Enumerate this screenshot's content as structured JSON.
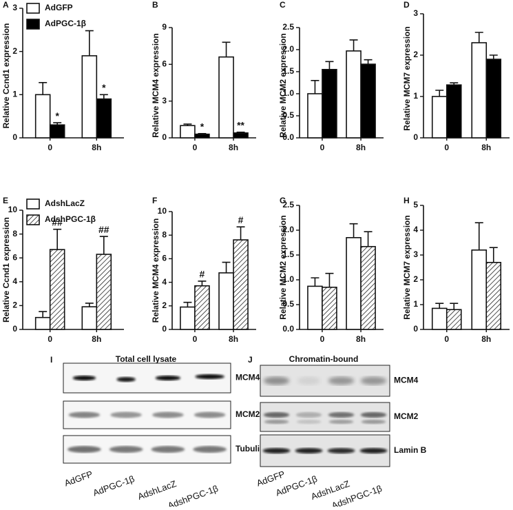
{
  "chart_data": [
    {
      "type": "bar",
      "panel_label": "A",
      "y_label": "Relative Ccnd1 expression",
      "categories": [
        "0",
        "8h"
      ],
      "ylim": [
        0,
        3
      ],
      "yticks": [
        0,
        1,
        2,
        3
      ],
      "series": [
        {
          "name": "AdGFP",
          "color": "#ffffff",
          "values": [
            1.0,
            1.9
          ],
          "errors": [
            0.28,
            0.58
          ]
        },
        {
          "name": "AdPGC-1β",
          "color": "#000000",
          "values": [
            0.3,
            0.9
          ],
          "errors": [
            0.05,
            0.1
          ],
          "annotations": [
            "*",
            "*"
          ]
        }
      ]
    },
    {
      "type": "bar",
      "panel_label": "B",
      "y_label": "Relative MCM4 expression",
      "categories": [
        "0",
        "8h"
      ],
      "ylim": [
        0,
        9
      ],
      "yticks": [
        0,
        3,
        6,
        9
      ],
      "series": [
        {
          "color": "#ffffff",
          "values": [
            1.0,
            6.6
          ],
          "errors": [
            0.12,
            1.2
          ]
        },
        {
          "color": "#000000",
          "values": [
            0.3,
            0.4
          ],
          "errors": [
            0.05,
            0.06
          ],
          "annotations": [
            "*",
            "**"
          ]
        }
      ]
    },
    {
      "type": "bar",
      "panel_label": "C",
      "y_label": "Relative MCM2 expression",
      "categories": [
        "0",
        "8h"
      ],
      "ylim": [
        0,
        2.5
      ],
      "yticks": [
        {
          "value": 0,
          "label": "0.0"
        },
        0.5,
        {
          "value": 1,
          "label": "1.0"
        },
        1.5,
        {
          "value": 2,
          "label": "2.0"
        },
        2.5
      ],
      "series": [
        {
          "color": "#ffffff",
          "values": [
            1.0,
            1.97
          ],
          "errors": [
            0.3,
            0.25
          ]
        },
        {
          "color": "#000000",
          "values": [
            1.55,
            1.67
          ],
          "errors": [
            0.18,
            0.1
          ]
        }
      ]
    },
    {
      "type": "bar",
      "panel_label": "D",
      "y_label": "Relative MCM7 expression",
      "categories": [
        "0",
        "8h"
      ],
      "ylim": [
        0,
        3
      ],
      "yticks": [
        0,
        1,
        2,
        3
      ],
      "series": [
        {
          "color": "#ffffff",
          "values": [
            1.0,
            2.3
          ],
          "errors": [
            0.15,
            0.25
          ]
        },
        {
          "color": "#000000",
          "values": [
            1.28,
            1.9
          ],
          "errors": [
            0.05,
            0.1
          ]
        }
      ]
    },
    {
      "type": "bar",
      "panel_label": "E",
      "y_label": "Relative Ccnd1 expression",
      "categories": [
        "0",
        "8h"
      ],
      "ylim": [
        0,
        10
      ],
      "yticks": [
        0,
        2,
        4,
        6,
        8,
        10
      ],
      "series": [
        {
          "name": "AdshLacZ",
          "color": "#ffffff",
          "values": [
            1.0,
            1.9
          ],
          "errors": [
            0.5,
            0.3
          ]
        },
        {
          "name": "AdshPGC-1β",
          "color": "#ffffff",
          "hatch": true,
          "values": [
            6.7,
            6.3
          ],
          "errors": [
            1.7,
            1.5
          ],
          "annotations": [
            "##",
            "##"
          ]
        }
      ]
    },
    {
      "type": "bar",
      "panel_label": "F",
      "y_label": "Relative MCM4 expression",
      "categories": [
        "0",
        "8h"
      ],
      "ylim": [
        0,
        10
      ],
      "yticks": [
        0,
        2,
        4,
        6,
        8,
        10
      ],
      "series": [
        {
          "color": "#ffffff",
          "values": [
            1.9,
            4.8
          ],
          "errors": [
            0.4,
            0.9
          ]
        },
        {
          "color": "#ffffff",
          "hatch": true,
          "values": [
            3.7,
            7.6
          ],
          "errors": [
            0.4,
            1.1
          ],
          "annotations": [
            "#",
            "#"
          ]
        }
      ]
    },
    {
      "type": "bar",
      "panel_label": "G",
      "y_label": "Relative MCM2 expression",
      "categories": [
        "0",
        "8h"
      ],
      "ylim": [
        0,
        2.5
      ],
      "yticks": [
        {
          "value": 0,
          "label": "0.0"
        },
        0.5,
        {
          "value": 1,
          "label": "1.0"
        },
        1.5,
        {
          "value": 2,
          "label": "2.0"
        },
        2.5
      ],
      "series": [
        {
          "color": "#ffffff",
          "values": [
            0.87,
            1.85
          ],
          "errors": [
            0.17,
            0.28
          ]
        },
        {
          "color": "#ffffff",
          "hatch": true,
          "values": [
            0.85,
            1.67
          ],
          "errors": [
            0.28,
            0.3
          ]
        }
      ]
    },
    {
      "type": "bar",
      "panel_label": "H",
      "y_label": "Relative MCM7 expression",
      "categories": [
        "0",
        "8h"
      ],
      "ylim": [
        0,
        5
      ],
      "yticks": [
        0,
        1,
        2,
        3,
        4,
        5
      ],
      "series": [
        {
          "color": "#ffffff",
          "values": [
            0.85,
            3.2
          ],
          "errors": [
            0.2,
            1.1
          ]
        },
        {
          "color": "#ffffff",
          "hatch": true,
          "values": [
            0.8,
            2.7
          ],
          "errors": [
            0.25,
            0.6
          ]
        }
      ]
    }
  ],
  "blots": [
    {
      "panel_label": "I",
      "title": "Total cell lysate",
      "rows": [
        "MCM4",
        "MCM2",
        "Tubulin"
      ],
      "lanes": [
        "AdGFP",
        "AdPGC-1β",
        "AdshLacZ",
        "AdshPGC-1β"
      ]
    },
    {
      "panel_label": "J",
      "title": "Chromatin-bound",
      "rows": [
        "MCM4",
        "MCM2",
        "Lamin B"
      ],
      "lanes": [
        "AdGFP",
        "AdPGC-1β",
        "AdshLacZ",
        "AdshPGC-1β"
      ]
    }
  ]
}
